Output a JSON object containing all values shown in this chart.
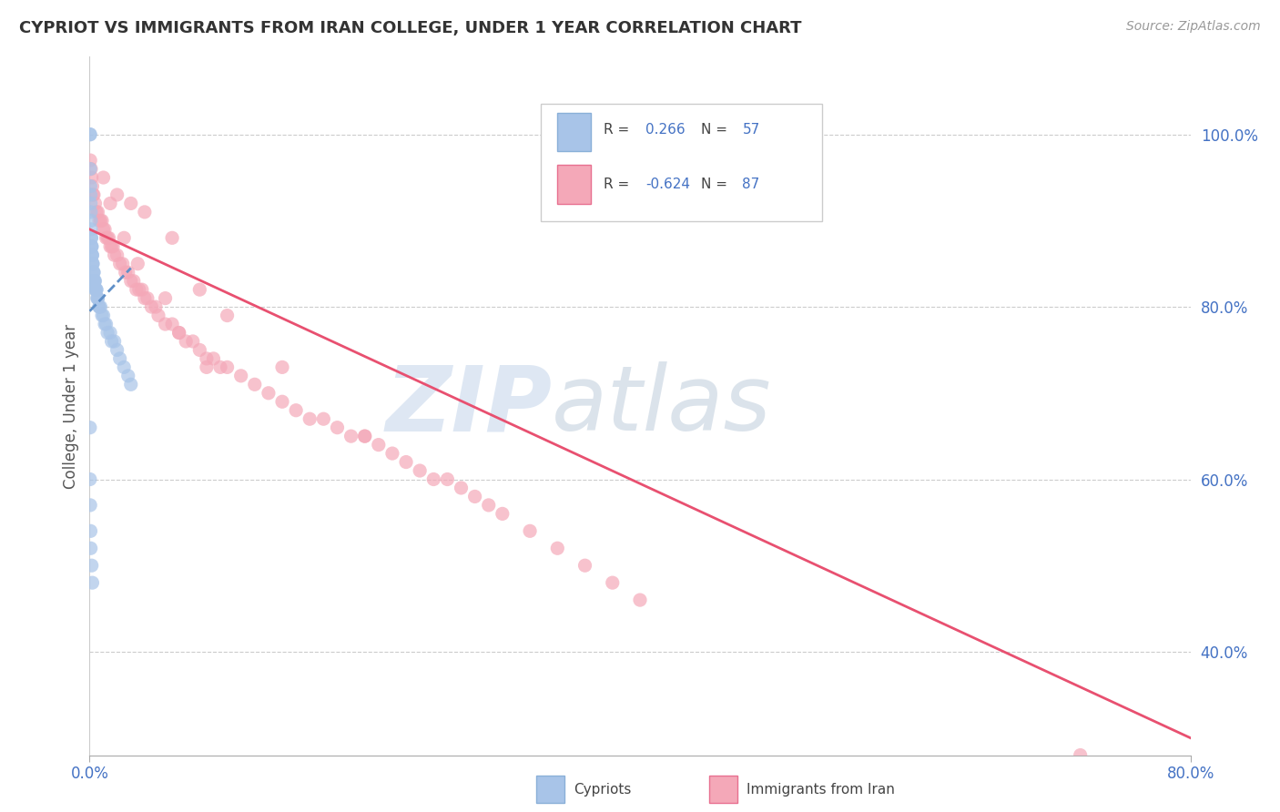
{
  "title": "CYPRIOT VS IMMIGRANTS FROM IRAN COLLEGE, UNDER 1 YEAR CORRELATION CHART",
  "source": "Source: ZipAtlas.com",
  "ylabel": "College, Under 1 year",
  "ytick_values": [
    0.4,
    0.6,
    0.8,
    1.0
  ],
  "ytick_labels": [
    "40.0%",
    "60.0%",
    "80.0%",
    "100.0%"
  ],
  "xlim": [
    0.0,
    0.8
  ],
  "ylim": [
    0.28,
    1.09
  ],
  "cypriot_color": "#a8c4e8",
  "iran_color": "#f4a8b8",
  "cypriot_line_color": "#6090c8",
  "iran_line_color": "#e85070",
  "legend_R1": "0.266",
  "legend_N1": "57",
  "legend_R2": "-0.624",
  "legend_N2": "87",
  "cypriot_scatter_x": [
    0.0004,
    0.0004,
    0.0005,
    0.0006,
    0.0007,
    0.0008,
    0.0009,
    0.001,
    0.001,
    0.0012,
    0.0013,
    0.0014,
    0.0015,
    0.0016,
    0.0017,
    0.0018,
    0.002,
    0.002,
    0.0022,
    0.0024,
    0.0025,
    0.003,
    0.003,
    0.0032,
    0.0034,
    0.0036,
    0.004,
    0.004,
    0.0045,
    0.005,
    0.005,
    0.0055,
    0.006,
    0.006,
    0.007,
    0.007,
    0.008,
    0.009,
    0.01,
    0.011,
    0.012,
    0.013,
    0.015,
    0.016,
    0.018,
    0.02,
    0.022,
    0.025,
    0.028,
    0.03,
    0.0003,
    0.0003,
    0.0005,
    0.0007,
    0.0008,
    0.0015,
    0.002
  ],
  "cypriot_scatter_y": [
    1.0,
    1.0,
    0.96,
    0.94,
    0.93,
    0.92,
    0.91,
    0.9,
    0.89,
    0.88,
    0.88,
    0.87,
    0.87,
    0.87,
    0.86,
    0.86,
    0.86,
    0.85,
    0.85,
    0.85,
    0.84,
    0.84,
    0.84,
    0.83,
    0.83,
    0.83,
    0.83,
    0.82,
    0.82,
    0.82,
    0.82,
    0.81,
    0.81,
    0.81,
    0.8,
    0.8,
    0.8,
    0.79,
    0.79,
    0.78,
    0.78,
    0.77,
    0.77,
    0.76,
    0.76,
    0.75,
    0.74,
    0.73,
    0.72,
    0.71,
    0.66,
    0.6,
    0.57,
    0.54,
    0.52,
    0.5,
    0.48
  ],
  "iran_scatter_x": [
    0.0005,
    0.001,
    0.0015,
    0.002,
    0.0025,
    0.003,
    0.004,
    0.005,
    0.006,
    0.007,
    0.008,
    0.009,
    0.01,
    0.011,
    0.012,
    0.013,
    0.014,
    0.015,
    0.016,
    0.017,
    0.018,
    0.02,
    0.022,
    0.024,
    0.026,
    0.028,
    0.03,
    0.032,
    0.034,
    0.036,
    0.038,
    0.04,
    0.042,
    0.045,
    0.048,
    0.05,
    0.055,
    0.06,
    0.065,
    0.07,
    0.075,
    0.08,
    0.085,
    0.09,
    0.095,
    0.1,
    0.11,
    0.12,
    0.13,
    0.14,
    0.15,
    0.16,
    0.17,
    0.18,
    0.19,
    0.2,
    0.21,
    0.22,
    0.23,
    0.24,
    0.25,
    0.26,
    0.27,
    0.28,
    0.29,
    0.3,
    0.32,
    0.34,
    0.36,
    0.38,
    0.4,
    0.02,
    0.03,
    0.04,
    0.06,
    0.08,
    0.1,
    0.14,
    0.2,
    0.72,
    0.01,
    0.015,
    0.025,
    0.035,
    0.055,
    0.065,
    0.085
  ],
  "iran_scatter_y": [
    0.97,
    0.96,
    0.95,
    0.94,
    0.93,
    0.93,
    0.92,
    0.91,
    0.91,
    0.9,
    0.9,
    0.9,
    0.89,
    0.89,
    0.88,
    0.88,
    0.88,
    0.87,
    0.87,
    0.87,
    0.86,
    0.86,
    0.85,
    0.85,
    0.84,
    0.84,
    0.83,
    0.83,
    0.82,
    0.82,
    0.82,
    0.81,
    0.81,
    0.8,
    0.8,
    0.79,
    0.78,
    0.78,
    0.77,
    0.76,
    0.76,
    0.75,
    0.74,
    0.74,
    0.73,
    0.73,
    0.72,
    0.71,
    0.7,
    0.69,
    0.68,
    0.67,
    0.67,
    0.66,
    0.65,
    0.65,
    0.64,
    0.63,
    0.62,
    0.61,
    0.6,
    0.6,
    0.59,
    0.58,
    0.57,
    0.56,
    0.54,
    0.52,
    0.5,
    0.48,
    0.46,
    0.93,
    0.92,
    0.91,
    0.88,
    0.82,
    0.79,
    0.73,
    0.65,
    0.28,
    0.95,
    0.92,
    0.88,
    0.85,
    0.81,
    0.77,
    0.73
  ],
  "cypriot_trend_x": [
    0.0,
    0.03
  ],
  "cypriot_trend_y": [
    0.795,
    0.845
  ],
  "iran_trend_x": [
    0.0,
    0.8
  ],
  "iran_trend_y": [
    0.89,
    0.3
  ]
}
